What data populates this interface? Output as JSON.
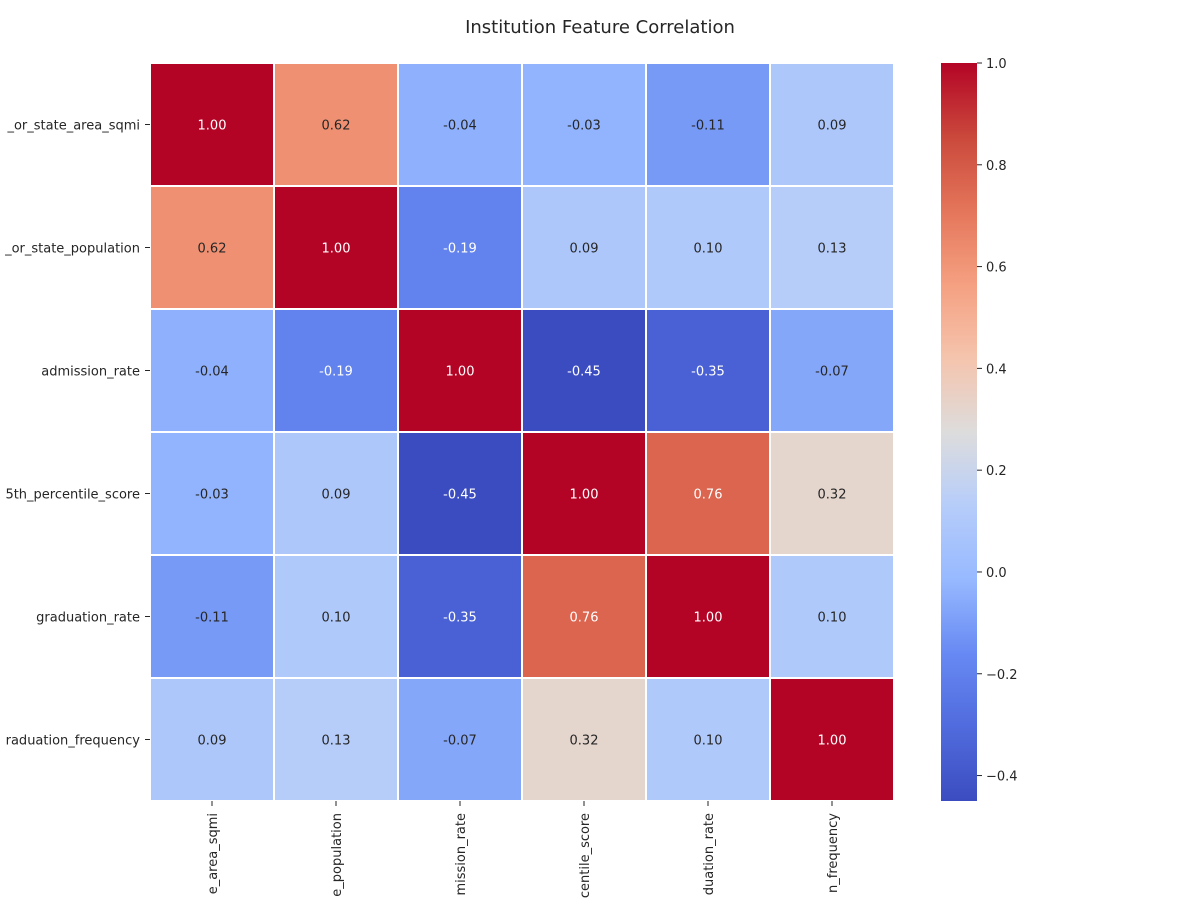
{
  "chart_data": {
    "type": "heatmap",
    "title": "Institution Feature Correlation",
    "row_labels": [
      "_or_state_area_sqmi",
      "_or_state_population",
      "admission_rate",
      "5th_percentile_score",
      "graduation_rate",
      "raduation_frequency"
    ],
    "column_labels": [
      "e_area_sqmi",
      "e_population",
      "mission_rate",
      "centile_score",
      "duation_rate",
      "n_frequency"
    ],
    "values": [
      [
        1.0,
        0.62,
        -0.04,
        -0.03,
        -0.11,
        0.09
      ],
      [
        0.62,
        1.0,
        -0.19,
        0.09,
        0.1,
        0.13
      ],
      [
        -0.04,
        -0.19,
        1.0,
        -0.45,
        -0.35,
        -0.07
      ],
      [
        -0.03,
        0.09,
        -0.45,
        1.0,
        0.76,
        0.32
      ],
      [
        -0.11,
        0.1,
        -0.35,
        0.76,
        1.0,
        0.1
      ],
      [
        0.09,
        0.13,
        -0.07,
        0.32,
        0.1,
        1.0
      ]
    ],
    "value_format": "2 decimals",
    "colormap": "coolwarm",
    "color_range": [
      -0.45,
      1.0
    ],
    "colorbar": {
      "ticks": [
        1.0,
        0.8,
        0.6,
        0.4,
        0.2,
        0.0,
        -0.2,
        -0.4
      ],
      "tick_labels": [
        "1.0",
        "0.8",
        "0.6",
        "0.4",
        "0.2",
        "0.0",
        "−0.2",
        "−0.4"
      ]
    },
    "grid_lines": "white",
    "legend": "colorbar-right"
  }
}
